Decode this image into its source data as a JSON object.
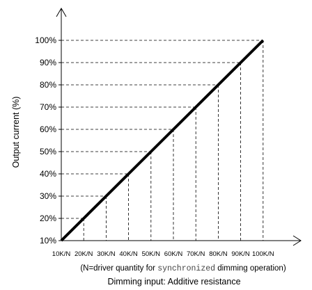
{
  "chart_data": {
    "type": "line",
    "ylabel": "Output current (%)",
    "xlabel": "Dimming input: Additive resistance",
    "note": {
      "prefix": "(N=driver quantity for ",
      "mono": "synchronized",
      "suffix": " dimming operation)"
    },
    "categories": [
      "10K/N",
      "20K/N",
      "30K/N",
      "40K/N",
      "50K/N",
      "60K/N",
      "70K/N",
      "80K/N",
      "90K/N",
      "100K/N"
    ],
    "yticks": [
      "10%",
      "20%",
      "30%",
      "40%",
      "50%",
      "60%",
      "70%",
      "80%",
      "90%",
      "100%"
    ],
    "ylim": [
      10,
      100
    ],
    "series": [
      {
        "values": [
          10,
          20,
          30,
          40,
          50,
          60,
          70,
          80,
          90,
          100
        ]
      }
    ],
    "colors": {
      "line": "#000000",
      "guides": "#000000",
      "text": "#000000",
      "note_mono": "#444444"
    }
  }
}
